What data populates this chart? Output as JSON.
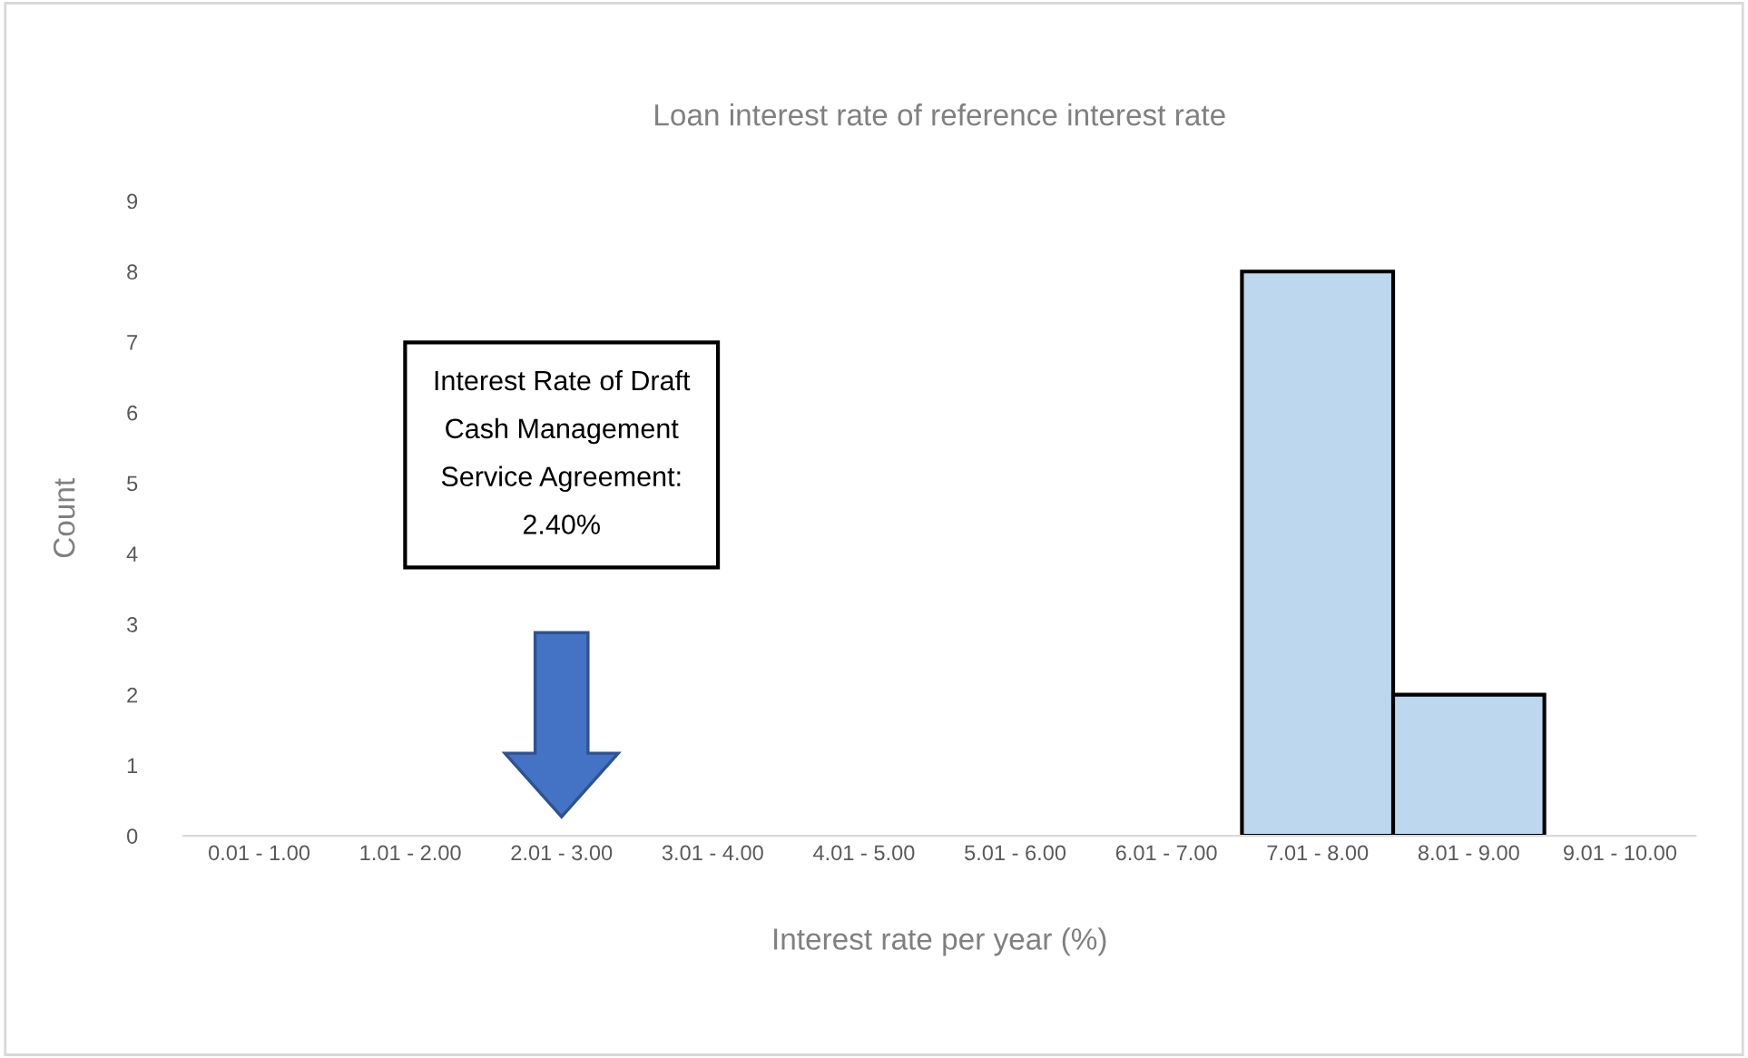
{
  "chart_data": {
    "type": "bar",
    "title": "Loan interest rate of reference interest rate",
    "xlabel": "Interest rate per year (%)",
    "ylabel": "Count",
    "categories": [
      "0.01 - 1.00",
      "1.01 - 2.00",
      "2.01 - 3.00",
      "3.01 - 4.00",
      "4.01 - 5.00",
      "5.01 - 6.00",
      "6.01 - 7.00",
      "7.01 - 8.00",
      "8.01 - 9.00",
      "9.01 - 10.00"
    ],
    "values": [
      0,
      0,
      0,
      0,
      0,
      0,
      0,
      8,
      2,
      0
    ],
    "color": "#bdd7ee",
    "ylim": [
      0,
      9
    ],
    "yticks": [
      0,
      1,
      2,
      3,
      4,
      5,
      6,
      7,
      8,
      9
    ],
    "grid": false,
    "annotations": [
      "Interest Rate of Draft\nCash Management\nService Agreement:\n2.40%"
    ]
  }
}
